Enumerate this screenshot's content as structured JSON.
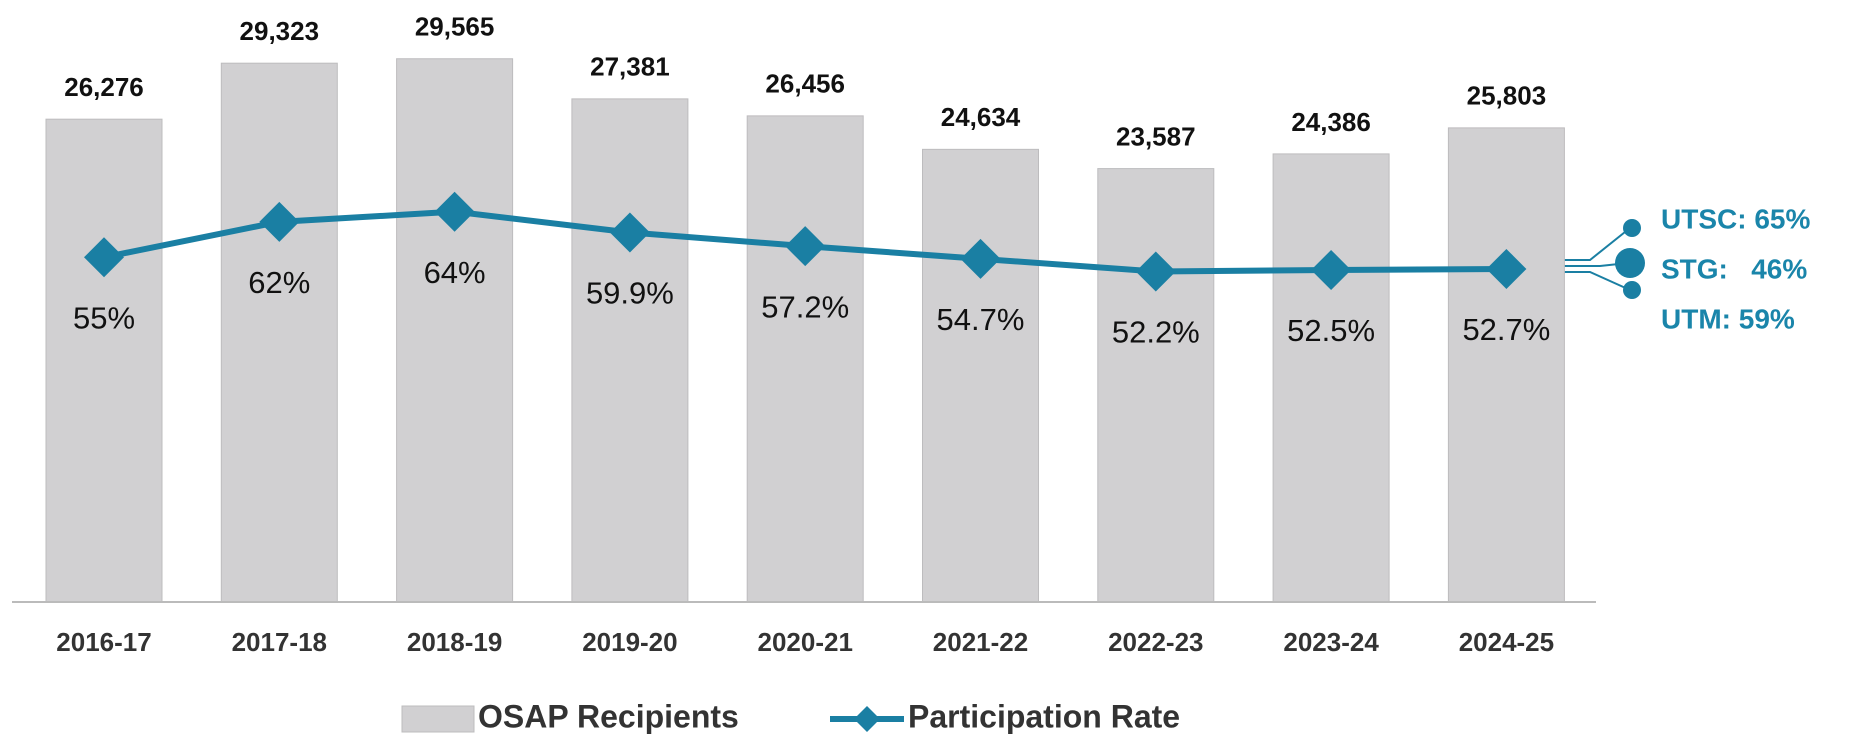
{
  "chart_data": {
    "type": "bar",
    "categories": [
      "2016-17",
      "2017-18",
      "2018-19",
      "2019-20",
      "2020-21",
      "2021-22",
      "2022-23",
      "2023-24",
      "2024-25"
    ],
    "series": [
      {
        "name": "OSAP Recipients",
        "type": "bar",
        "color": "#d1d0d2",
        "values": [
          26276,
          29323,
          29565,
          27381,
          26456,
          24634,
          23587,
          24386,
          25803
        ],
        "value_labels": [
          "26,276",
          "29,323",
          "29,565",
          "27,381",
          "26,456",
          "24,634",
          "23,587",
          "24,386",
          "25,803"
        ]
      },
      {
        "name": "Participation Rate",
        "type": "line",
        "axis": "y2",
        "color": "#1a7fa3",
        "values": [
          55,
          62,
          64,
          59.9,
          57.2,
          54.7,
          52.2,
          52.5,
          52.7
        ],
        "value_labels": [
          "55%",
          "62%",
          "64%",
          "59.9%",
          "57.2%",
          "54.7%",
          "52.2%",
          "52.5%",
          "52.7%"
        ]
      }
    ],
    "ylim": [
      0,
      32000
    ],
    "y2lim": [
      -13,
      103
    ],
    "annotations": [
      "UTSC: 65%",
      "STG:   46%",
      "UTM: 59%"
    ],
    "legend": "bottom"
  }
}
